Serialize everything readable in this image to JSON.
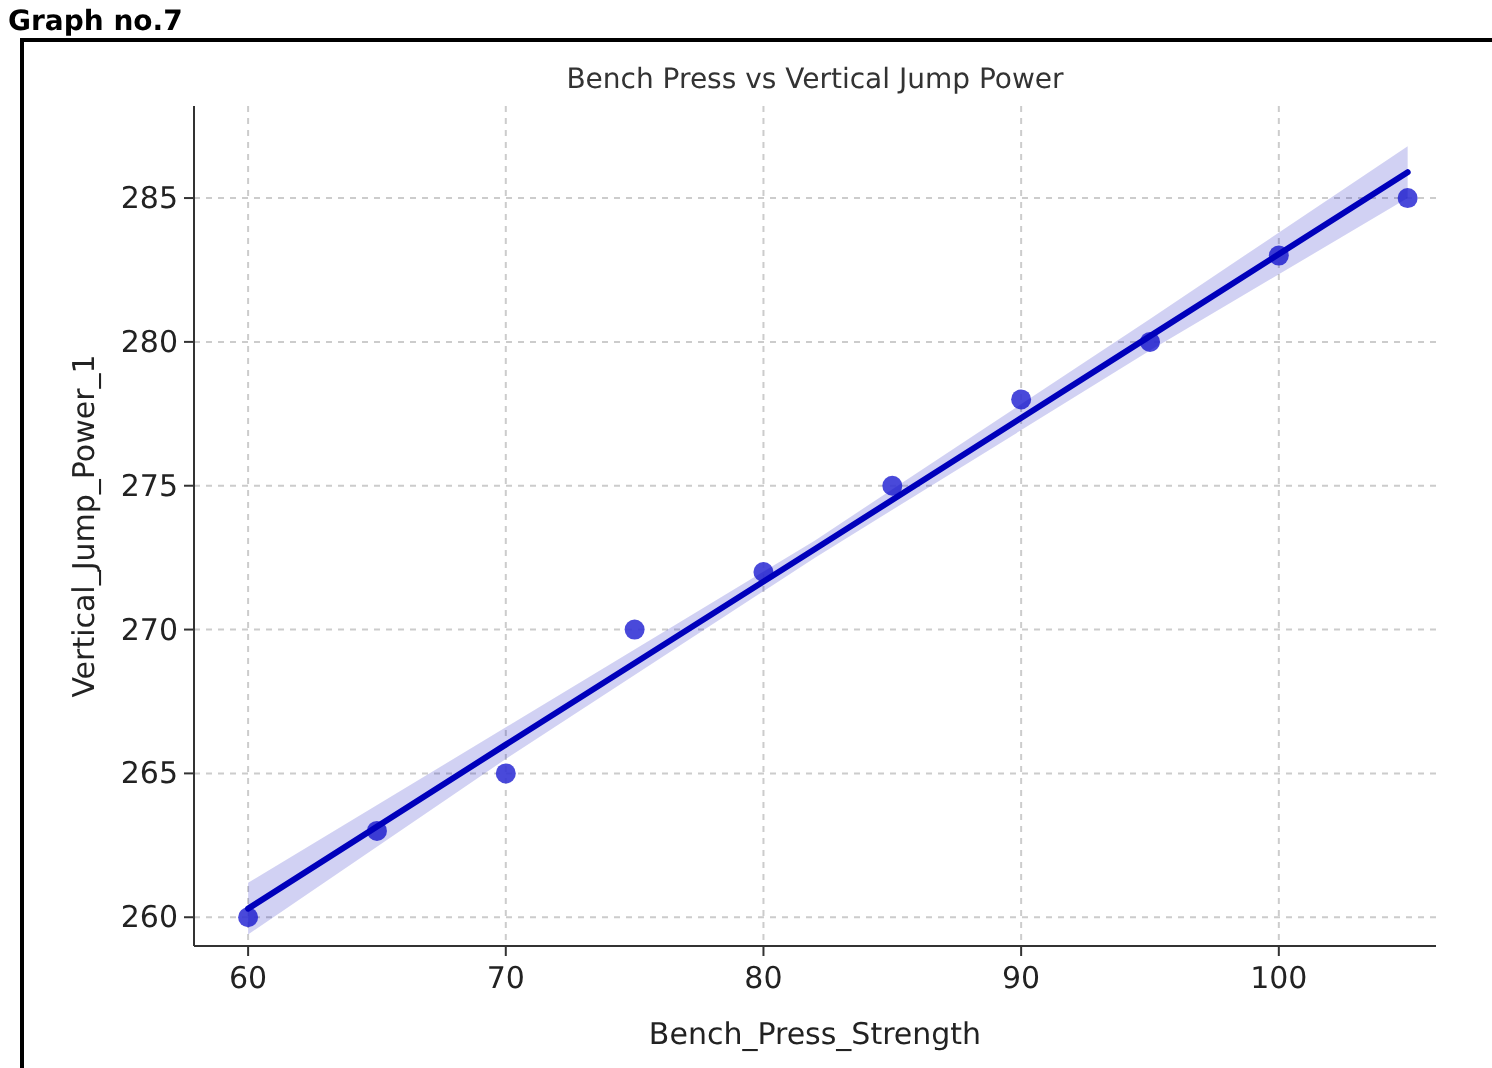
{
  "chart_data": {
    "type": "scatter",
    "title": "Bench Press vs Vertical Jump Power",
    "xlabel": "Bench_Press_Strength",
    "ylabel": "Vertical_Jump_Power_1",
    "annotations": [
      "Graph no.7"
    ],
    "series": [
      {
        "color": "#3535d6",
        "marker": "circle",
        "x": [
          60,
          65,
          70,
          75,
          80,
          85,
          90,
          95,
          100,
          105
        ],
        "values": [
          260,
          263,
          265,
          270,
          272,
          275,
          278,
          280,
          283,
          285
        ]
      },
      {
        "type": "line",
        "color": "#0000bb",
        "x": [
          60,
          70,
          82,
          95,
          105
        ],
        "values": [
          260.3,
          266.0,
          272.8,
          280.2,
          285.9
        ],
        "lower": [
          259.4,
          265.5,
          272.5,
          279.7,
          285.0
        ],
        "upper": [
          261.2,
          266.6,
          273.1,
          280.8,
          286.8
        ]
      }
    ],
    "xlim": [
      57.9,
      106.1
    ],
    "xticks": [
      60,
      70,
      80,
      90,
      100
    ],
    "ylim": [
      259.0,
      288.2
    ],
    "yticks": [
      260,
      265,
      270,
      275,
      280,
      285
    ],
    "grid": true
  }
}
